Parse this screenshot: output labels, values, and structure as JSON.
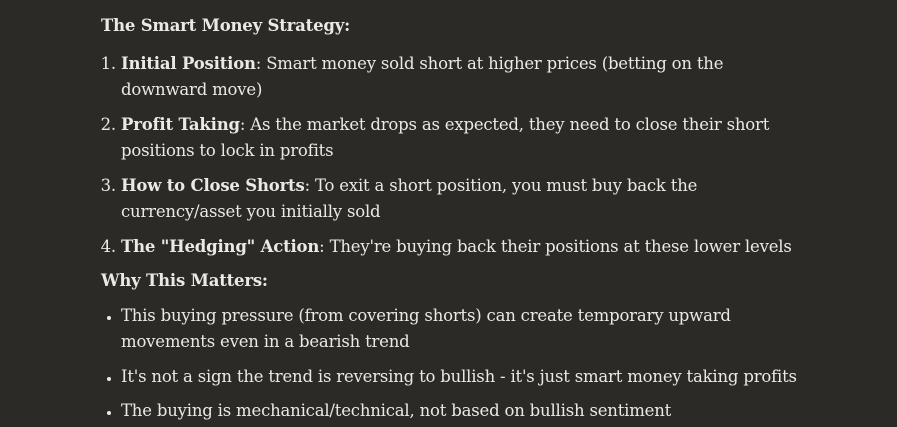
{
  "strategy": {
    "heading": "The Smart Money Strategy:",
    "items": [
      {
        "term": "Initial Position",
        "text": ": Smart money sold short at higher prices (betting on the downward move)"
      },
      {
        "term": "Profit Taking",
        "text": ": As the market drops as expected, they need to close their short positions to lock in profits"
      },
      {
        "term": "How to Close Shorts",
        "text": ": To exit a short position, you must buy back the currency/asset you initially sold"
      },
      {
        "term": "The \"Hedging\" Action",
        "text": ": They're buying back their positions at these lower levels"
      }
    ]
  },
  "matters": {
    "heading": "Why This Matters:",
    "items": [
      "This buying pressure (from covering shorts) can create temporary upward movements even in a bearish trend",
      "It's not a sign the trend is reversing to bullish - it's just smart money taking profits",
      "The buying is mechanical/technical, not based on bullish sentiment"
    ]
  }
}
